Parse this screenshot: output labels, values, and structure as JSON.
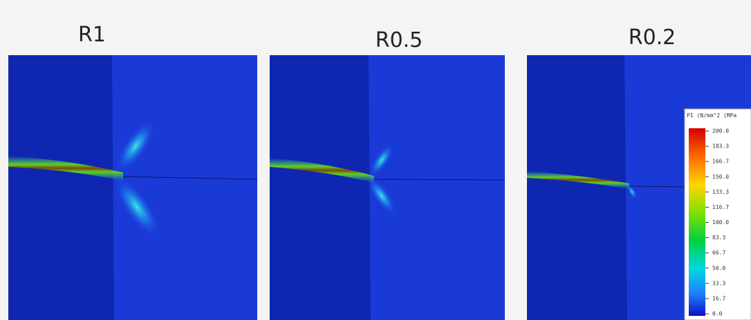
{
  "panels": [
    {
      "label": "R1"
    },
    {
      "label": "R0.5"
    },
    {
      "label": "R0.2"
    }
  ],
  "legend": {
    "title": "P1 (N/mm^2 (MPa",
    "labels": [
      "200.0",
      "183.3",
      "166.7",
      "150.0",
      "133.3",
      "116.7",
      "100.0",
      "83.3",
      "66.7",
      "50.0",
      "33.3",
      "16.7",
      "0.0"
    ]
  }
}
